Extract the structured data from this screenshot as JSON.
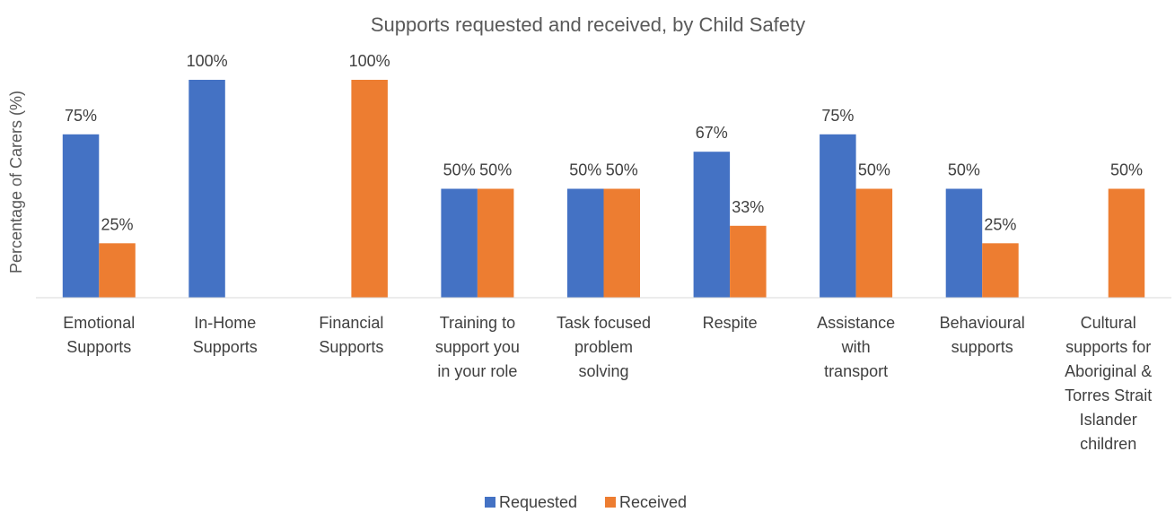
{
  "chart_data": {
    "type": "bar",
    "title": "Supports requested and received, by Child Safety",
    "xlabel": "",
    "ylabel": "Percentage of Carers (%)",
    "ylim": [
      0,
      100
    ],
    "grid": false,
    "legend_position": "bottom",
    "categories": [
      [
        "Emotional",
        "Supports"
      ],
      [
        "In-Home",
        "Supports"
      ],
      [
        "Financial",
        "Supports"
      ],
      [
        "Training to",
        "support you",
        "in your role"
      ],
      [
        "Task focused",
        "problem",
        "solving"
      ],
      [
        "Respite"
      ],
      [
        "Assistance",
        "with",
        "transport"
      ],
      [
        "Behavioural",
        "supports"
      ],
      [
        "Cultural",
        "supports for",
        "Aboriginal &",
        "Torres Strait",
        "Islander",
        "children"
      ]
    ],
    "series": [
      {
        "name": "Requested",
        "color": "#4472C4",
        "values": [
          75,
          100,
          0,
          50,
          50,
          67,
          75,
          50,
          0
        ],
        "labels": [
          "75%",
          "100%",
          "",
          "50%",
          "50%",
          "67%",
          "75%",
          "50%",
          ""
        ]
      },
      {
        "name": "Received",
        "color": "#ED7D31",
        "values": [
          25,
          0,
          100,
          50,
          50,
          33,
          50,
          25,
          50
        ],
        "labels": [
          "25%",
          "",
          "100%",
          "50%",
          "50%",
          "33%",
          "50%",
          "25%",
          "50%"
        ]
      }
    ]
  }
}
